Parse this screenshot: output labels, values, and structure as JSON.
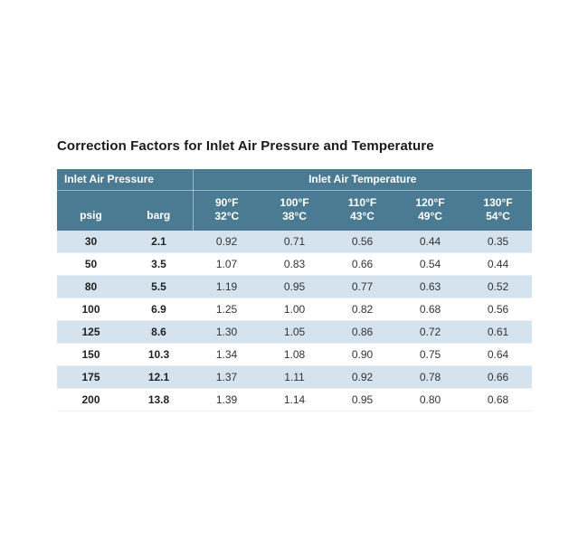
{
  "page": {
    "title": "Correction Factors for Inlet Air Pressure and Temperature"
  },
  "table": {
    "group_headers": {
      "pressure": "Inlet Air Pressure",
      "temperature": "Inlet Air Temperature"
    },
    "unit_headers": {
      "psig": "psig",
      "barg": "barg"
    },
    "temp_headers": [
      {
        "f": "90°F",
        "c": "32°C"
      },
      {
        "f": "100°F",
        "c": "38°C"
      },
      {
        "f": "110°F",
        "c": "43°C"
      },
      {
        "f": "120°F",
        "c": "49°C"
      },
      {
        "f": "130°F",
        "c": "54°C"
      }
    ],
    "rows": [
      [
        "30",
        "2.1",
        "0.92",
        "0.71",
        "0.56",
        "0.44",
        "0.35"
      ],
      [
        "50",
        "3.5",
        "1.07",
        "0.83",
        "0.66",
        "0.54",
        "0.44"
      ],
      [
        "80",
        "5.5",
        "1.19",
        "0.95",
        "0.77",
        "0.63",
        "0.52"
      ],
      [
        "100",
        "6.9",
        "1.25",
        "1.00",
        "0.82",
        "0.68",
        "0.56"
      ],
      [
        "125",
        "8.6",
        "1.30",
        "1.05",
        "0.86",
        "0.72",
        "0.61"
      ],
      [
        "150",
        "10.3",
        "1.34",
        "1.08",
        "0.90",
        "0.75",
        "0.64"
      ],
      [
        "175",
        "12.1",
        "1.37",
        "1.11",
        "0.92",
        "0.78",
        "0.66"
      ],
      [
        "200",
        "13.8",
        "1.39",
        "1.14",
        "0.95",
        "0.80",
        "0.68"
      ]
    ],
    "colors": {
      "header_bg": "#4a7b93",
      "row_alt_bg": "#d5e3ef",
      "title_text": "#1a1a1a"
    }
  }
}
